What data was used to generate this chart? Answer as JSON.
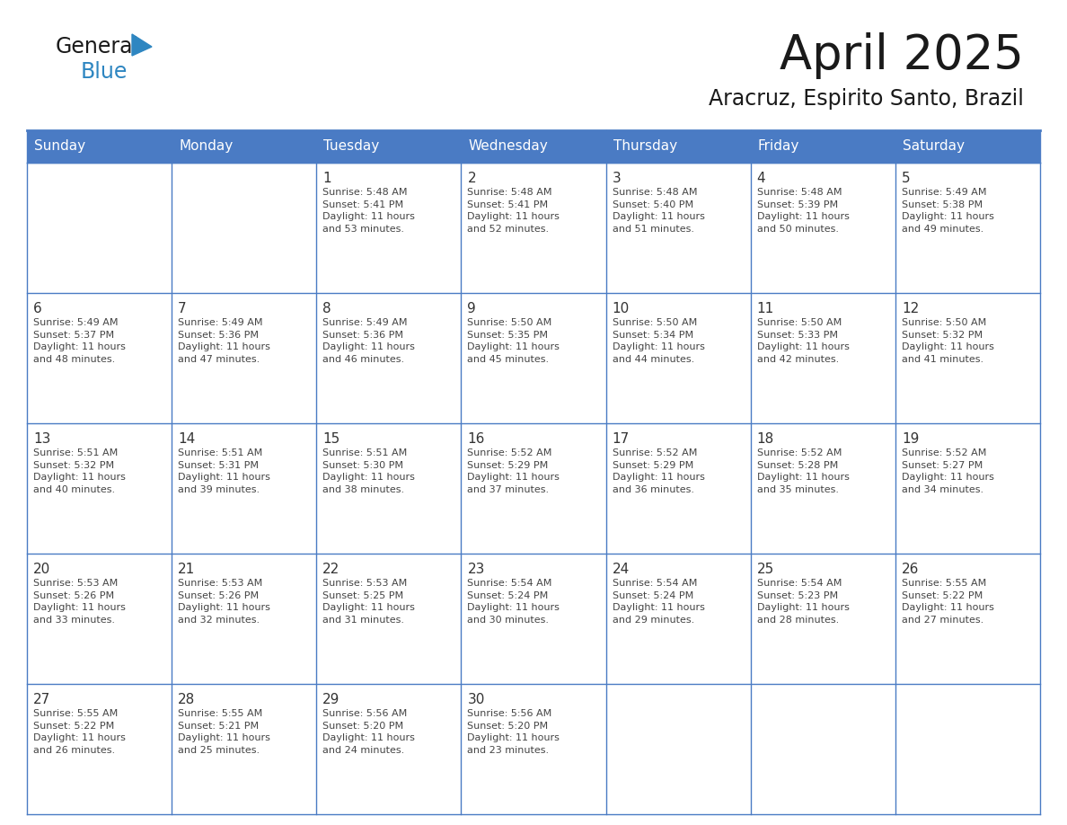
{
  "title": "April 2025",
  "subtitle": "Aracruz, Espirito Santo, Brazil",
  "days_of_week": [
    "Sunday",
    "Monday",
    "Tuesday",
    "Wednesday",
    "Thursday",
    "Friday",
    "Saturday"
  ],
  "header_bg_color": "#4A7BC4",
  "header_text_color": "#FFFFFF",
  "grid_line_color": "#4A7BC4",
  "cell_bg_color": "#FFFFFF",
  "day_number_color": "#333333",
  "cell_text_color": "#444444",
  "title_color": "#1a1a1a",
  "subtitle_color": "#1a1a1a",
  "logo_general_color": "#1a1a1a",
  "logo_blue_color": "#2E86C1",
  "calendar_data": [
    [
      {
        "day": null,
        "info": ""
      },
      {
        "day": null,
        "info": ""
      },
      {
        "day": 1,
        "info": "Sunrise: 5:48 AM\nSunset: 5:41 PM\nDaylight: 11 hours\nand 53 minutes."
      },
      {
        "day": 2,
        "info": "Sunrise: 5:48 AM\nSunset: 5:41 PM\nDaylight: 11 hours\nand 52 minutes."
      },
      {
        "day": 3,
        "info": "Sunrise: 5:48 AM\nSunset: 5:40 PM\nDaylight: 11 hours\nand 51 minutes."
      },
      {
        "day": 4,
        "info": "Sunrise: 5:48 AM\nSunset: 5:39 PM\nDaylight: 11 hours\nand 50 minutes."
      },
      {
        "day": 5,
        "info": "Sunrise: 5:49 AM\nSunset: 5:38 PM\nDaylight: 11 hours\nand 49 minutes."
      }
    ],
    [
      {
        "day": 6,
        "info": "Sunrise: 5:49 AM\nSunset: 5:37 PM\nDaylight: 11 hours\nand 48 minutes."
      },
      {
        "day": 7,
        "info": "Sunrise: 5:49 AM\nSunset: 5:36 PM\nDaylight: 11 hours\nand 47 minutes."
      },
      {
        "day": 8,
        "info": "Sunrise: 5:49 AM\nSunset: 5:36 PM\nDaylight: 11 hours\nand 46 minutes."
      },
      {
        "day": 9,
        "info": "Sunrise: 5:50 AM\nSunset: 5:35 PM\nDaylight: 11 hours\nand 45 minutes."
      },
      {
        "day": 10,
        "info": "Sunrise: 5:50 AM\nSunset: 5:34 PM\nDaylight: 11 hours\nand 44 minutes."
      },
      {
        "day": 11,
        "info": "Sunrise: 5:50 AM\nSunset: 5:33 PM\nDaylight: 11 hours\nand 42 minutes."
      },
      {
        "day": 12,
        "info": "Sunrise: 5:50 AM\nSunset: 5:32 PM\nDaylight: 11 hours\nand 41 minutes."
      }
    ],
    [
      {
        "day": 13,
        "info": "Sunrise: 5:51 AM\nSunset: 5:32 PM\nDaylight: 11 hours\nand 40 minutes."
      },
      {
        "day": 14,
        "info": "Sunrise: 5:51 AM\nSunset: 5:31 PM\nDaylight: 11 hours\nand 39 minutes."
      },
      {
        "day": 15,
        "info": "Sunrise: 5:51 AM\nSunset: 5:30 PM\nDaylight: 11 hours\nand 38 minutes."
      },
      {
        "day": 16,
        "info": "Sunrise: 5:52 AM\nSunset: 5:29 PM\nDaylight: 11 hours\nand 37 minutes."
      },
      {
        "day": 17,
        "info": "Sunrise: 5:52 AM\nSunset: 5:29 PM\nDaylight: 11 hours\nand 36 minutes."
      },
      {
        "day": 18,
        "info": "Sunrise: 5:52 AM\nSunset: 5:28 PM\nDaylight: 11 hours\nand 35 minutes."
      },
      {
        "day": 19,
        "info": "Sunrise: 5:52 AM\nSunset: 5:27 PM\nDaylight: 11 hours\nand 34 minutes."
      }
    ],
    [
      {
        "day": 20,
        "info": "Sunrise: 5:53 AM\nSunset: 5:26 PM\nDaylight: 11 hours\nand 33 minutes."
      },
      {
        "day": 21,
        "info": "Sunrise: 5:53 AM\nSunset: 5:26 PM\nDaylight: 11 hours\nand 32 minutes."
      },
      {
        "day": 22,
        "info": "Sunrise: 5:53 AM\nSunset: 5:25 PM\nDaylight: 11 hours\nand 31 minutes."
      },
      {
        "day": 23,
        "info": "Sunrise: 5:54 AM\nSunset: 5:24 PM\nDaylight: 11 hours\nand 30 minutes."
      },
      {
        "day": 24,
        "info": "Sunrise: 5:54 AM\nSunset: 5:24 PM\nDaylight: 11 hours\nand 29 minutes."
      },
      {
        "day": 25,
        "info": "Sunrise: 5:54 AM\nSunset: 5:23 PM\nDaylight: 11 hours\nand 28 minutes."
      },
      {
        "day": 26,
        "info": "Sunrise: 5:55 AM\nSunset: 5:22 PM\nDaylight: 11 hours\nand 27 minutes."
      }
    ],
    [
      {
        "day": 27,
        "info": "Sunrise: 5:55 AM\nSunset: 5:22 PM\nDaylight: 11 hours\nand 26 minutes."
      },
      {
        "day": 28,
        "info": "Sunrise: 5:55 AM\nSunset: 5:21 PM\nDaylight: 11 hours\nand 25 minutes."
      },
      {
        "day": 29,
        "info": "Sunrise: 5:56 AM\nSunset: 5:20 PM\nDaylight: 11 hours\nand 24 minutes."
      },
      {
        "day": 30,
        "info": "Sunrise: 5:56 AM\nSunset: 5:20 PM\nDaylight: 11 hours\nand 23 minutes."
      },
      {
        "day": null,
        "info": ""
      },
      {
        "day": null,
        "info": ""
      },
      {
        "day": null,
        "info": ""
      }
    ]
  ]
}
